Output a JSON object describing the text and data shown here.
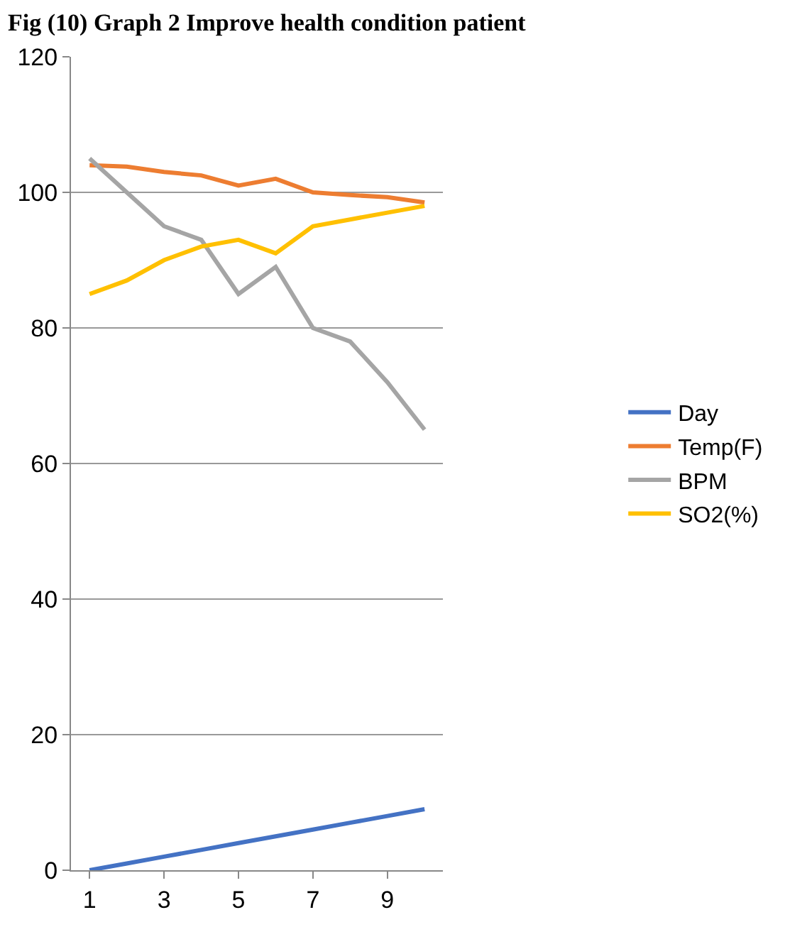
{
  "chart_data": {
    "type": "line",
    "title": "Fig (10) Graph 2 Improve health condition patient",
    "categories": [
      "1",
      null,
      "3",
      null,
      "5",
      null,
      "7",
      null,
      "9",
      null
    ],
    "series": [
      {
        "name": "Day",
        "color": "#4472c4",
        "values": [
          0,
          1,
          2,
          3,
          4,
          5,
          6,
          7,
          8,
          9
        ]
      },
      {
        "name": "Temp(F)",
        "color": "#ed7d31",
        "values": [
          104,
          103.8,
          103,
          102.5,
          101,
          102,
          100,
          99.6,
          99.3,
          98.5
        ]
      },
      {
        "name": "BPM",
        "color": "#a5a5a5",
        "values": [
          105,
          100,
          95,
          93,
          85,
          89,
          80,
          78,
          72,
          65
        ]
      },
      {
        "name": "SO2(%)",
        "color": "#ffc000",
        "values": [
          85,
          87,
          90,
          92,
          93,
          91,
          95,
          96,
          97,
          98
        ]
      }
    ],
    "ylim": [
      0,
      120
    ],
    "yticks": [
      0,
      20,
      40,
      60,
      80,
      100,
      120
    ],
    "grid": "y",
    "legend": "right",
    "marker": "none",
    "line_style": "solid"
  }
}
